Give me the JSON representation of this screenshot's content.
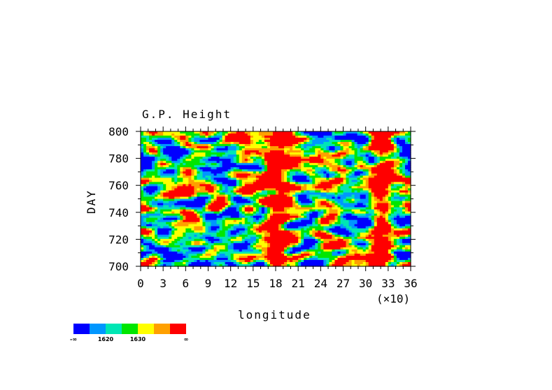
{
  "chart_data": {
    "type": "heatmap",
    "title": "G.P. Height",
    "xlabel": "longitude",
    "ylabel": "DAY",
    "x_multiplier": "(×10)",
    "xlim": [
      0,
      36
    ],
    "ylim": [
      700,
      800
    ],
    "x_ticks": [
      "0",
      "3",
      "6",
      "9",
      "12",
      "15",
      "18",
      "21",
      "24",
      "27",
      "30",
      "33",
      "36"
    ],
    "y_ticks": [
      "700",
      "720",
      "740",
      "760",
      "780",
      "800"
    ],
    "colorbar": {
      "colors": [
        "#0000ff",
        "#0096ff",
        "#00e6b4",
        "#00e600",
        "#ffff00",
        "#ffa000",
        "#ff0000"
      ],
      "labels": [
        "-∞",
        "1620",
        "1630",
        "∞"
      ]
    },
    "features": [
      {
        "description": "high values band",
        "lon_center": 18,
        "day_range": [
          700,
          800
        ]
      },
      {
        "description": "high values band",
        "lon_center": 32,
        "day_range": [
          700,
          800
        ]
      }
    ]
  }
}
